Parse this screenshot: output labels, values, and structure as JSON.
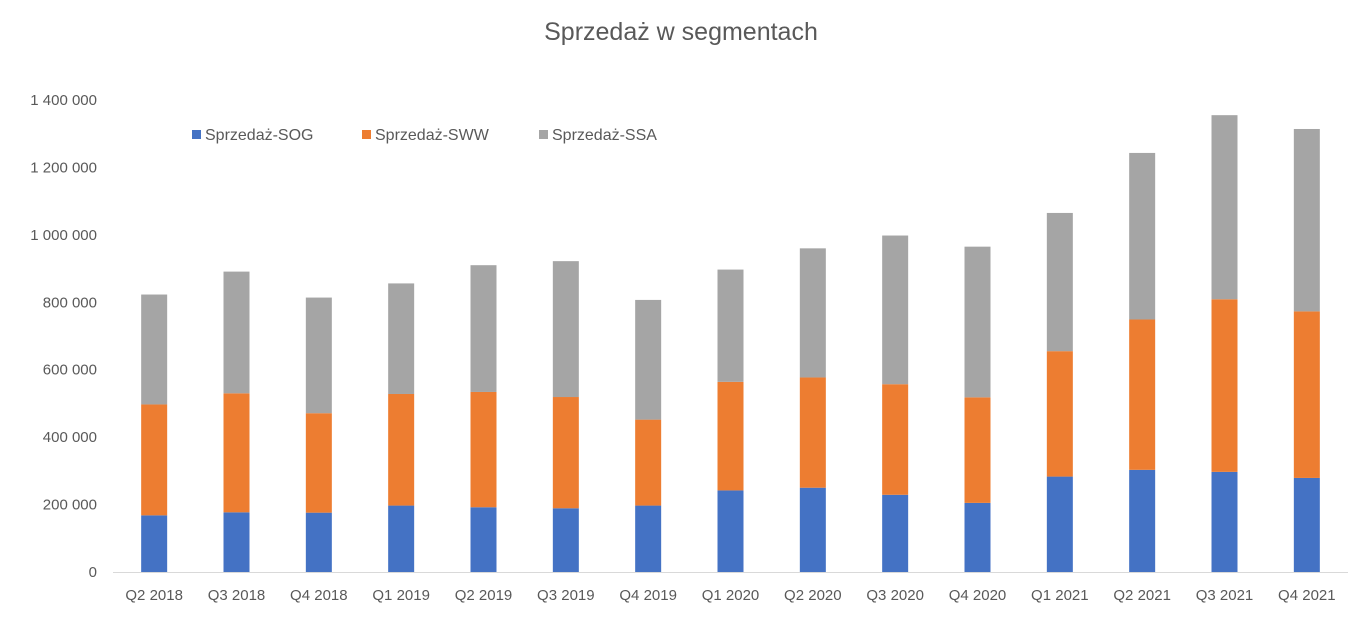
{
  "chart_data": {
    "type": "bar",
    "stacked": true,
    "title": "Sprzedaż w segmentach",
    "xlabel": "",
    "ylabel": "",
    "ylim": [
      0,
      1400000
    ],
    "yticks": [
      0,
      200000,
      400000,
      600000,
      800000,
      1000000,
      1200000,
      1400000
    ],
    "ytick_labels": [
      "0",
      "200 000",
      "400 000",
      "600 000",
      "800 000",
      "1 000 000",
      "1 200 000",
      "1 400 000"
    ],
    "grid": false,
    "legend_position": "top-left",
    "categories": [
      "Q2 2018",
      "Q3 2018",
      "Q4 2018",
      "Q1 2019",
      "Q2 2019",
      "Q3 2019",
      "Q4 2019",
      "Q1 2020",
      "Q2 2020",
      "Q3 2020",
      "Q4 2020",
      "Q1 2021",
      "Q2 2021",
      "Q3 2021",
      "Q4 2021"
    ],
    "series": [
      {
        "name": "Sprzedaż-SOG",
        "color": "#4472C4",
        "values": [
          168000,
          177000,
          176000,
          197000,
          192000,
          189000,
          197000,
          242000,
          250000,
          229000,
          205000,
          283000,
          303000,
          297000,
          279000
        ]
      },
      {
        "name": "Sprzedaż-SWW",
        "color": "#ED7D31",
        "values": [
          329000,
          353000,
          295000,
          331000,
          342000,
          330000,
          255000,
          322000,
          327000,
          328000,
          313000,
          372000,
          446000,
          512000,
          494000
        ]
      },
      {
        "name": "Sprzedaż-SSA",
        "color": "#A5A5A5",
        "values": [
          326000,
          361000,
          343000,
          328000,
          376000,
          403000,
          355000,
          333000,
          383000,
          441000,
          447000,
          410000,
          494000,
          546000,
          541000
        ]
      }
    ]
  }
}
